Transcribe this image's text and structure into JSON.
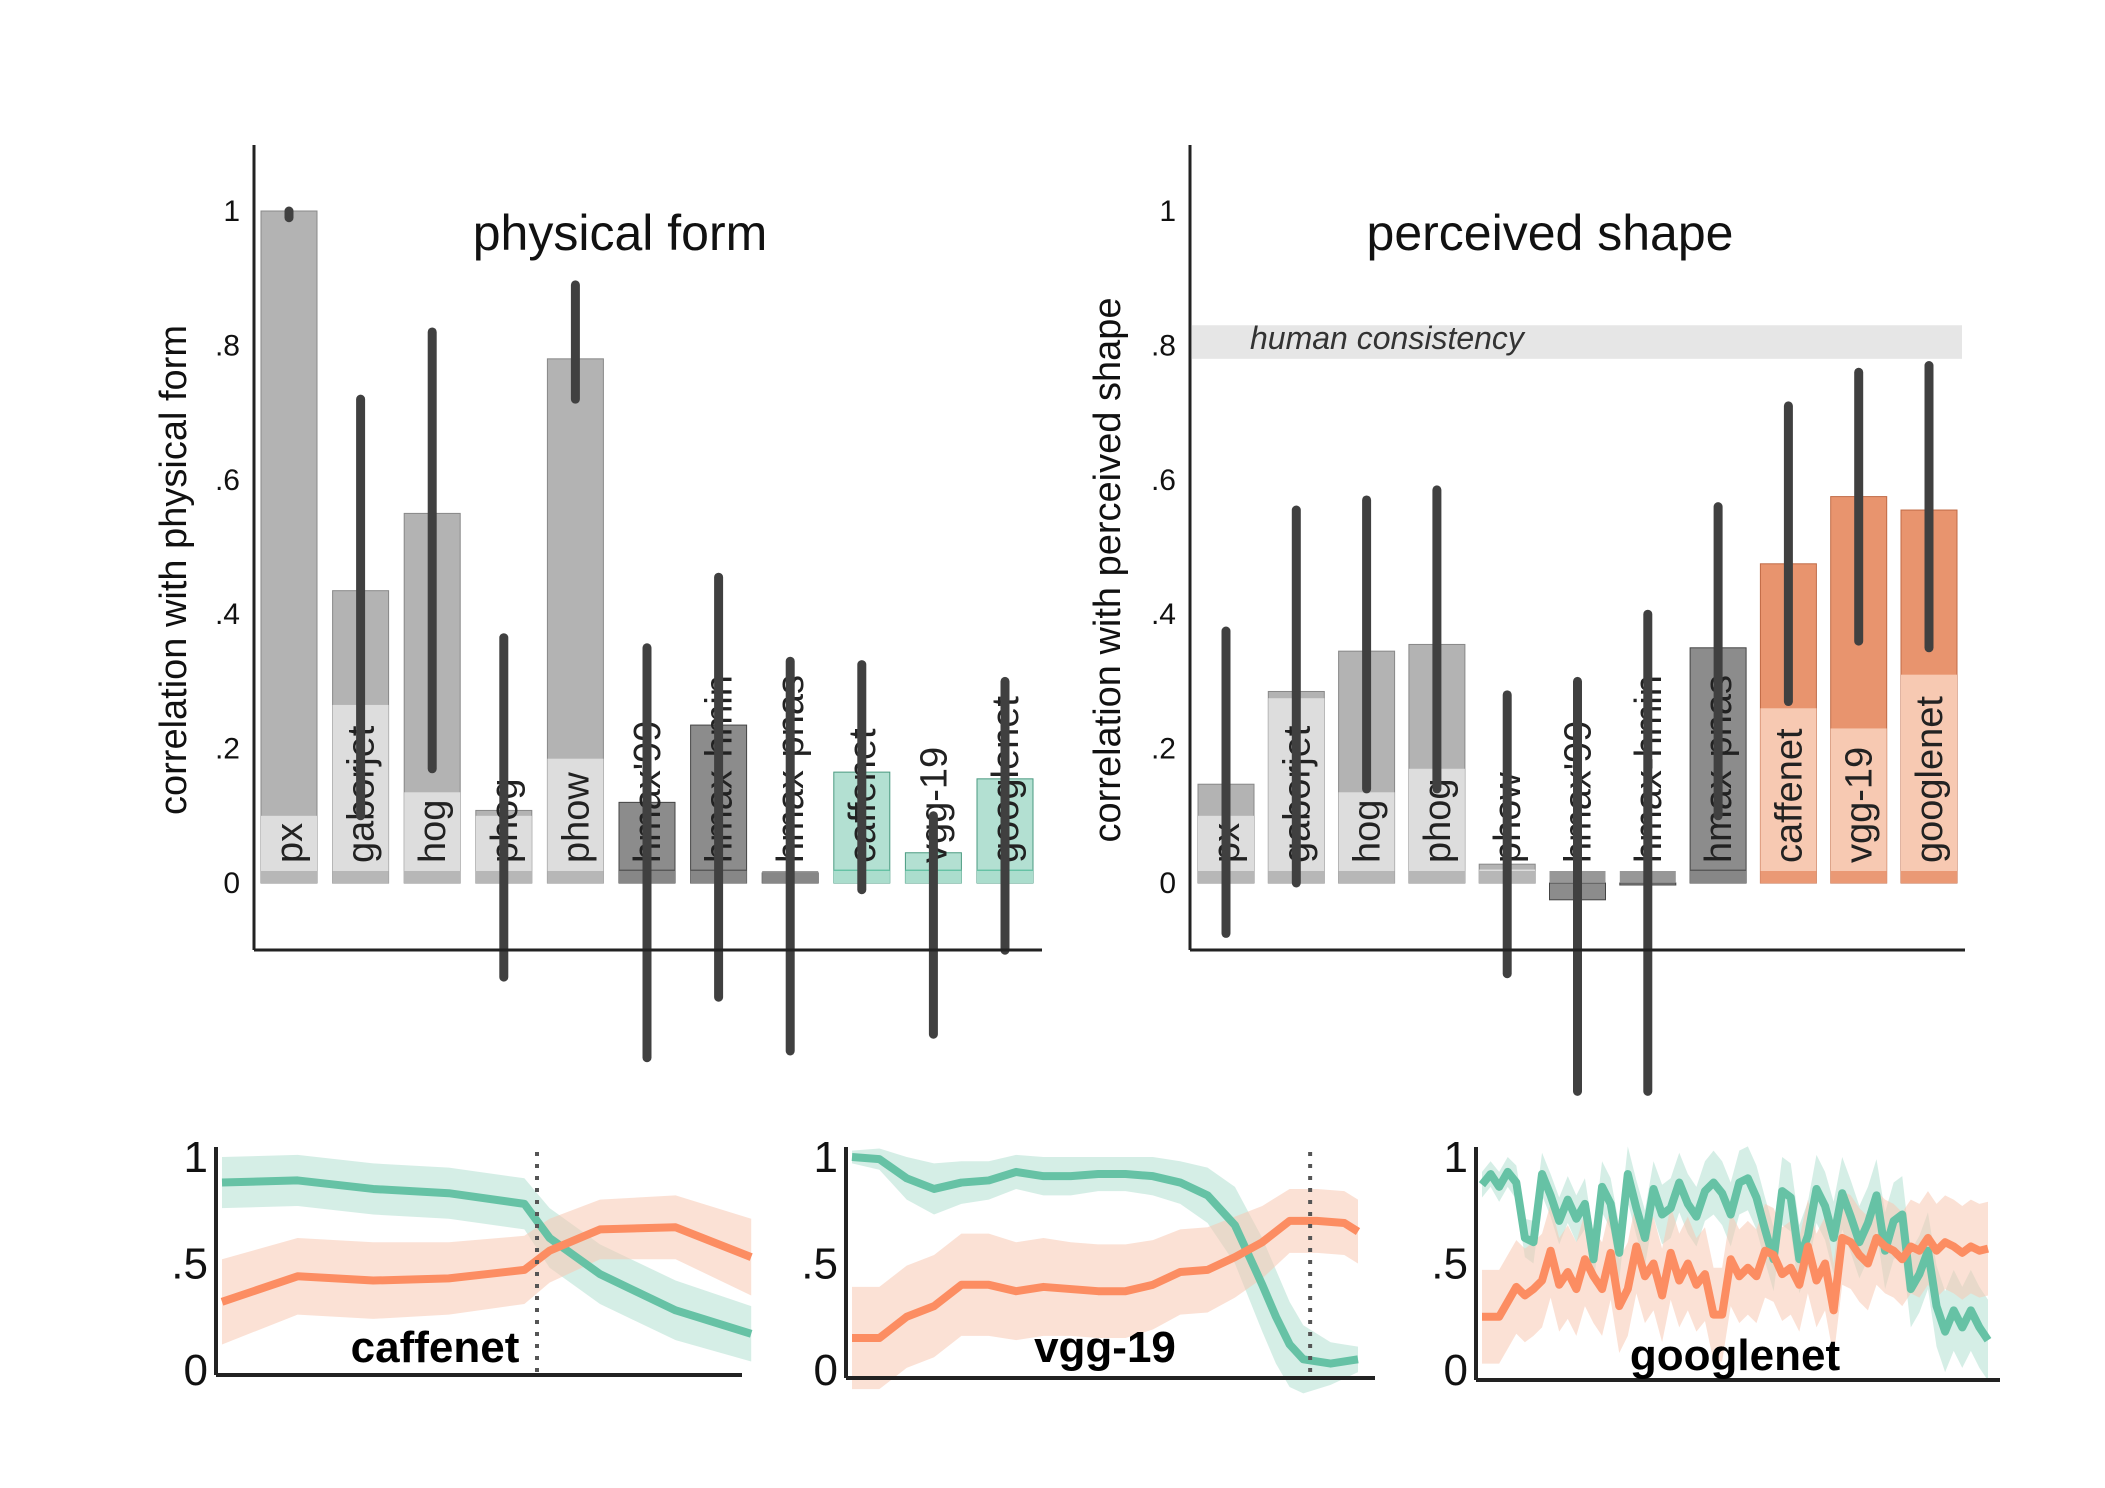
{
  "colors": {
    "gray_light": "#dddddd",
    "gray_mid": "#b3b3b3",
    "gray_dark": "#8c8c8c",
    "gray_darker": "#595959",
    "green": "#66c2a5",
    "green_light": "#b3e0d2",
    "orange": "#fc8d62",
    "orange_dark": "#e8946e",
    "orange_light": "#f7c9b2",
    "errorbar": "#404040",
    "human_band": "#e6e6e6"
  },
  "chart_data": [
    {
      "type": "bar",
      "title": "physical form",
      "ylabel": "correlation with physical form",
      "ylim": [
        -0.1,
        1.1
      ],
      "yticks": [
        "0",
        ".2",
        ".4",
        ".6",
        ".8",
        "1"
      ],
      "yticks_values": [
        0,
        0.2,
        0.4,
        0.6,
        0.8,
        1
      ],
      "categories": [
        "px",
        "gaborjet",
        "hog",
        "phog",
        "phow",
        "hmax'99",
        "hmax-hmin",
        "hmax-pnas",
        "caffenet",
        "vgg-19",
        "googlenet"
      ],
      "values": [
        1.0,
        0.435,
        0.55,
        0.108,
        0.78,
        0.12,
        0.235,
        0.015,
        0.165,
        0.045,
        0.155
      ],
      "lower_values": [
        0.1,
        0.265,
        0.135,
        0.1,
        0.185,
        0.02,
        0.02,
        0.015,
        0.02,
        0.02,
        0.02
      ],
      "error_low": [
        0.99,
        0.1,
        0.17,
        -0.14,
        0.72,
        -0.26,
        -0.17,
        -0.25,
        -0.01,
        -0.225,
        -0.1
      ],
      "error_high": [
        1.0,
        0.72,
        0.82,
        0.365,
        0.89,
        0.35,
        0.455,
        0.33,
        0.325,
        0.1,
        0.3
      ],
      "style": [
        "gray",
        "gray",
        "gray",
        "gray",
        "gray",
        "dark",
        "dark",
        "dark",
        "green",
        "green",
        "green"
      ]
    },
    {
      "type": "bar",
      "title": "perceived shape",
      "ylabel": "correlation with perceived shape",
      "ylim": [
        -0.1,
        1.1
      ],
      "yticks": [
        "0",
        ".2",
        ".4",
        ".6",
        ".8",
        "1"
      ],
      "yticks_values": [
        0,
        0.2,
        0.4,
        0.6,
        0.8,
        1
      ],
      "annotation": {
        "text": "human consistency",
        "low": 0.78,
        "high": 0.83
      },
      "categories": [
        "px",
        "gaborjet",
        "hog",
        "phog",
        "phow",
        "hmax'99",
        "hmax-hmin",
        "hmax-pnas",
        "caffenet",
        "vgg-19",
        "googlenet"
      ],
      "values": [
        0.147,
        0.285,
        0.345,
        0.355,
        0.028,
        -0.025,
        0.0,
        0.35,
        0.475,
        0.575,
        0.555
      ],
      "lower_values": [
        0.1,
        0.275,
        0.135,
        0.17,
        0.02,
        0.0,
        0.0,
        0.02,
        0.26,
        0.23,
        0.31
      ],
      "error_low": [
        -0.075,
        0.0,
        0.14,
        0.14,
        -0.135,
        -0.31,
        -0.31,
        0.1,
        0.27,
        0.36,
        0.35
      ],
      "error_high": [
        0.375,
        0.555,
        0.57,
        0.585,
        0.28,
        0.3,
        0.4,
        0.56,
        0.71,
        0.76,
        0.77
      ],
      "style": [
        "gray",
        "gray",
        "gray",
        "gray",
        "gray",
        "dark",
        "dark",
        "dark",
        "orange",
        "orange",
        "orange"
      ]
    },
    {
      "type": "line",
      "title": "caffenet",
      "yticks": [
        "0",
        ".5",
        "1"
      ],
      "yticks_values": [
        0,
        0.5,
        1
      ],
      "ylim": [
        -0.05,
        1.02
      ],
      "xlim": [
        0,
        20
      ],
      "vline": 12.5,
      "series": [
        {
          "role": "physical",
          "x": [
            0,
            3,
            6,
            9,
            12,
            13,
            15,
            18,
            21
          ],
          "y": [
            0.88,
            0.89,
            0.85,
            0.83,
            0.78,
            0.62,
            0.45,
            0.28,
            0.17
          ],
          "band": [
            0.12,
            0.12,
            0.12,
            0.12,
            0.12,
            0.14,
            0.14,
            0.14,
            0.13
          ]
        },
        {
          "role": "perceived",
          "x": [
            0,
            3,
            6,
            9,
            12,
            13,
            15,
            18,
            21
          ],
          "y": [
            0.32,
            0.44,
            0.42,
            0.43,
            0.47,
            0.56,
            0.66,
            0.67,
            0.53
          ],
          "band": [
            0.2,
            0.18,
            0.18,
            0.17,
            0.16,
            0.15,
            0.14,
            0.15,
            0.18
          ]
        }
      ]
    },
    {
      "type": "line",
      "title": "vgg-19",
      "yticks": [
        "0",
        ".5",
        "1"
      ],
      "yticks_values": [
        0,
        0.5,
        1
      ],
      "ylim": [
        -0.05,
        1.02
      ],
      "xlim": [
        0,
        37
      ],
      "vline": 33.5,
      "series": [
        {
          "role": "physical",
          "x": [
            0,
            2,
            4,
            6,
            8,
            10,
            12,
            14,
            16,
            18,
            20,
            22,
            24,
            26,
            28,
            30,
            31,
            32,
            33,
            34,
            35,
            36,
            37
          ],
          "y": [
            1.0,
            0.99,
            0.9,
            0.85,
            0.88,
            0.89,
            0.93,
            0.91,
            0.91,
            0.92,
            0.92,
            0.91,
            0.88,
            0.82,
            0.68,
            0.4,
            0.25,
            0.12,
            0.05,
            0.04,
            0.03,
            0.04,
            0.05
          ],
          "band": [
            0.03,
            0.05,
            0.1,
            0.12,
            0.1,
            0.09,
            0.08,
            0.09,
            0.09,
            0.08,
            0.08,
            0.09,
            0.1,
            0.13,
            0.18,
            0.22,
            0.22,
            0.2,
            0.16,
            0.13,
            0.1,
            0.08,
            0.06
          ]
        },
        {
          "role": "perceived",
          "x": [
            0,
            2,
            4,
            6,
            8,
            10,
            12,
            14,
            16,
            18,
            20,
            22,
            24,
            26,
            28,
            30,
            32,
            34,
            36,
            37
          ],
          "y": [
            0.15,
            0.15,
            0.25,
            0.3,
            0.4,
            0.4,
            0.37,
            0.39,
            0.38,
            0.37,
            0.37,
            0.4,
            0.46,
            0.47,
            0.53,
            0.6,
            0.7,
            0.7,
            0.69,
            0.65
          ],
          "band": [
            0.24,
            0.24,
            0.24,
            0.24,
            0.24,
            0.24,
            0.23,
            0.23,
            0.22,
            0.22,
            0.22,
            0.21,
            0.2,
            0.2,
            0.19,
            0.17,
            0.15,
            0.15,
            0.15,
            0.15
          ]
        }
      ]
    },
    {
      "type": "line",
      "title": "googlenet",
      "yticks": [
        "0",
        ".5",
        "1"
      ],
      "yticks_values": [
        0,
        0.5,
        1
      ],
      "ylim": [
        -0.05,
        1.02
      ],
      "xlim": [
        0,
        59
      ],
      "vline": null,
      "series": [
        {
          "role": "physical",
          "x": [
            0,
            1,
            2,
            3,
            4,
            5,
            6,
            7,
            8,
            9,
            10,
            11,
            12,
            13,
            14,
            15,
            16,
            17,
            18,
            19,
            20,
            21,
            22,
            23,
            24,
            25,
            26,
            27,
            28,
            29,
            30,
            31,
            32,
            33,
            34,
            35,
            36,
            37,
            38,
            39,
            40,
            41,
            42,
            43,
            44,
            45,
            46,
            47,
            48,
            49,
            50,
            51,
            52,
            53,
            54,
            55,
            56,
            57,
            58,
            59
          ],
          "y": [
            0.87,
            0.92,
            0.86,
            0.93,
            0.88,
            0.62,
            0.6,
            0.92,
            0.82,
            0.7,
            0.8,
            0.71,
            0.78,
            0.52,
            0.86,
            0.78,
            0.55,
            0.92,
            0.76,
            0.62,
            0.85,
            0.73,
            0.76,
            0.88,
            0.78,
            0.72,
            0.84,
            0.88,
            0.83,
            0.73,
            0.88,
            0.9,
            0.81,
            0.66,
            0.52,
            0.84,
            0.81,
            0.52,
            0.63,
            0.85,
            0.77,
            0.62,
            0.83,
            0.72,
            0.6,
            0.69,
            0.82,
            0.56,
            0.7,
            0.73,
            0.38,
            0.45,
            0.56,
            0.3,
            0.18,
            0.28,
            0.2,
            0.28,
            0.2,
            0.14
          ],
          "band": [
            0.06,
            0.06,
            0.07,
            0.07,
            0.08,
            0.09,
            0.1,
            0.1,
            0.1,
            0.11,
            0.11,
            0.11,
            0.12,
            0.12,
            0.12,
            0.12,
            0.13,
            0.13,
            0.13,
            0.13,
            0.13,
            0.14,
            0.14,
            0.14,
            0.14,
            0.14,
            0.14,
            0.15,
            0.15,
            0.15,
            0.15,
            0.15,
            0.15,
            0.15,
            0.15,
            0.16,
            0.16,
            0.16,
            0.16,
            0.16,
            0.16,
            0.17,
            0.17,
            0.17,
            0.17,
            0.17,
            0.17,
            0.18,
            0.18,
            0.18,
            0.18,
            0.18,
            0.18,
            0.19,
            0.19,
            0.19,
            0.19,
            0.19,
            0.19,
            0.19
          ]
        },
        {
          "role": "perceived",
          "x": [
            0,
            1,
            2,
            3,
            4,
            5,
            6,
            7,
            8,
            9,
            10,
            11,
            12,
            13,
            14,
            15,
            16,
            17,
            18,
            19,
            20,
            21,
            22,
            23,
            24,
            25,
            26,
            27,
            28,
            29,
            30,
            31,
            32,
            33,
            34,
            35,
            36,
            37,
            38,
            39,
            40,
            41,
            42,
            43,
            44,
            45,
            46,
            47,
            48,
            49,
            50,
            51,
            52,
            53,
            54,
            55,
            56,
            57,
            58,
            59
          ],
          "y": [
            0.25,
            0.25,
            0.25,
            0.32,
            0.39,
            0.35,
            0.38,
            0.42,
            0.56,
            0.4,
            0.46,
            0.38,
            0.52,
            0.44,
            0.38,
            0.55,
            0.3,
            0.38,
            0.58,
            0.44,
            0.5,
            0.35,
            0.55,
            0.42,
            0.5,
            0.4,
            0.45,
            0.26,
            0.26,
            0.52,
            0.44,
            0.48,
            0.44,
            0.56,
            0.54,
            0.45,
            0.48,
            0.4,
            0.58,
            0.42,
            0.5,
            0.28,
            0.62,
            0.6,
            0.54,
            0.5,
            0.62,
            0.58,
            0.56,
            0.52,
            0.58,
            0.56,
            0.62,
            0.56,
            0.6,
            0.58,
            0.55,
            0.58,
            0.56,
            0.57
          ],
          "band": [
            0.22,
            0.22,
            0.22,
            0.22,
            0.22,
            0.22,
            0.22,
            0.22,
            0.22,
            0.22,
            0.22,
            0.22,
            0.22,
            0.22,
            0.22,
            0.22,
            0.22,
            0.22,
            0.22,
            0.22,
            0.22,
            0.22,
            0.22,
            0.22,
            0.22,
            0.22,
            0.22,
            0.22,
            0.22,
            0.22,
            0.22,
            0.22,
            0.22,
            0.22,
            0.22,
            0.22,
            0.22,
            0.22,
            0.22,
            0.22,
            0.22,
            0.22,
            0.22,
            0.22,
            0.22,
            0.22,
            0.22,
            0.22,
            0.22,
            0.22,
            0.22,
            0.22,
            0.22,
            0.22,
            0.22,
            0.22,
            0.22,
            0.22,
            0.22,
            0.22
          ]
        }
      ]
    }
  ]
}
